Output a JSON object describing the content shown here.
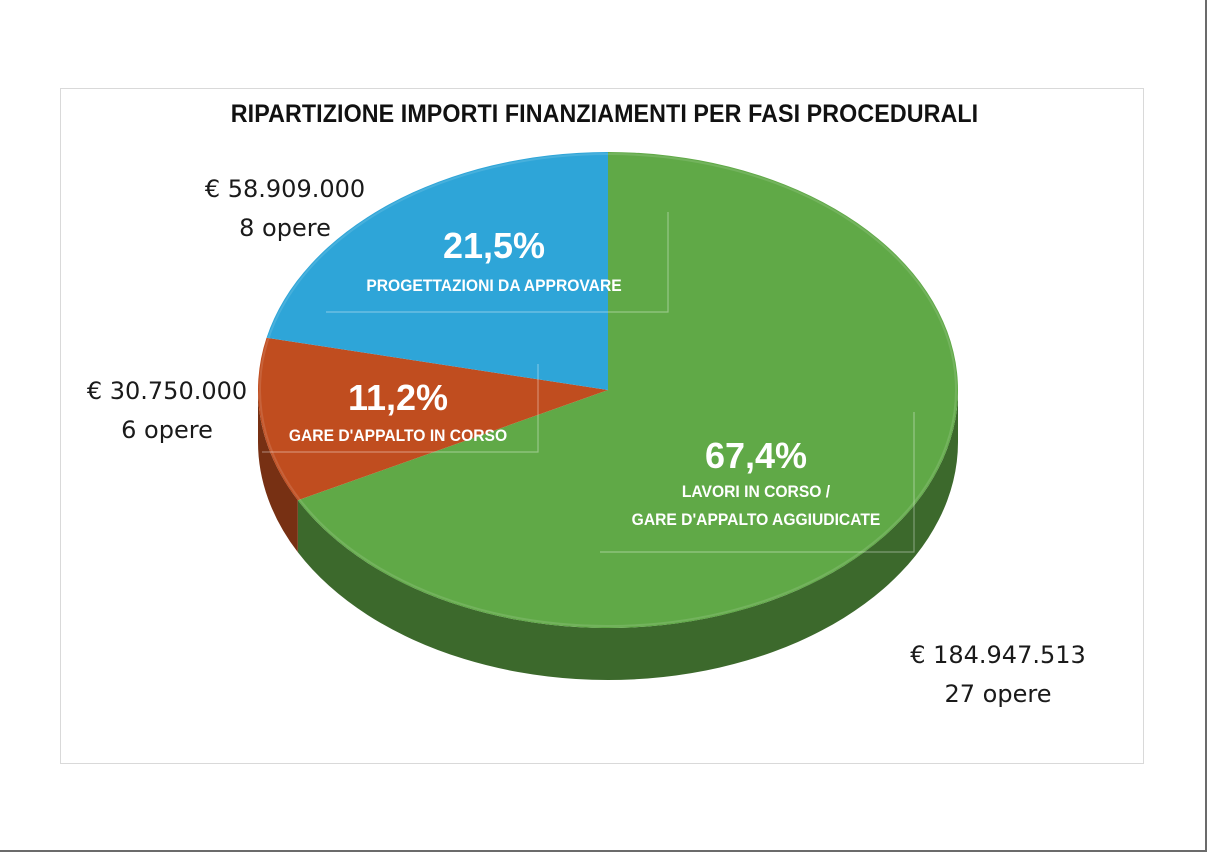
{
  "chart_data": {
    "type": "pie",
    "title": "RIPARTIZIONE IMPORTI FINANZIAMENTI PER FASI PROCEDURALI",
    "slices": [
      {
        "category": "LAVORI IN CORSO / GARE D'APPALTO AGGIUDICATE",
        "category_lines": [
          "LAVORI IN CORSO  /",
          "GARE D'APPALTO AGGIUDICATE"
        ],
        "percent": 67.4,
        "percent_label": "67,4%",
        "amount_label": "€ 184.947.513",
        "count_label": "27 opere",
        "color": "#60a947"
      },
      {
        "category": "GARE D'APPALTO IN CORSO",
        "category_lines": [
          "GARE D'APPALTO IN CORSO"
        ],
        "percent": 11.2,
        "percent_label": "11,2%",
        "amount_label": "€ 30.750.000",
        "count_label": "6 opere",
        "color": "#c04d1f"
      },
      {
        "category": "PROGETTAZIONI DA APPROVARE",
        "category_lines": [
          "PROGETTAZIONI DA APPROVARE"
        ],
        "percent": 21.5,
        "percent_label": "21,5%",
        "amount_label": "€ 58.909.000",
        "count_label": "8 opere",
        "color": "#2ea5d8"
      }
    ],
    "legend": "none"
  }
}
